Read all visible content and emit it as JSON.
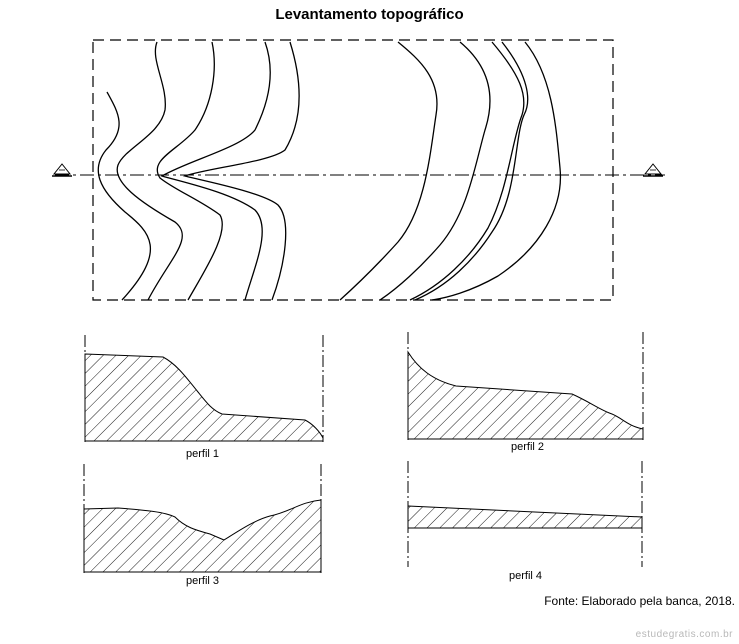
{
  "title": "Levantamento topográfico",
  "profiles": [
    {
      "label": "perfil 1"
    },
    {
      "label": "perfil 2"
    },
    {
      "label": "perfil 3"
    },
    {
      "label": "perfil 4"
    }
  ],
  "source": "Fonte: Elaborado pela banca, 2018.",
  "watermark": "estudegratis.com.br"
}
